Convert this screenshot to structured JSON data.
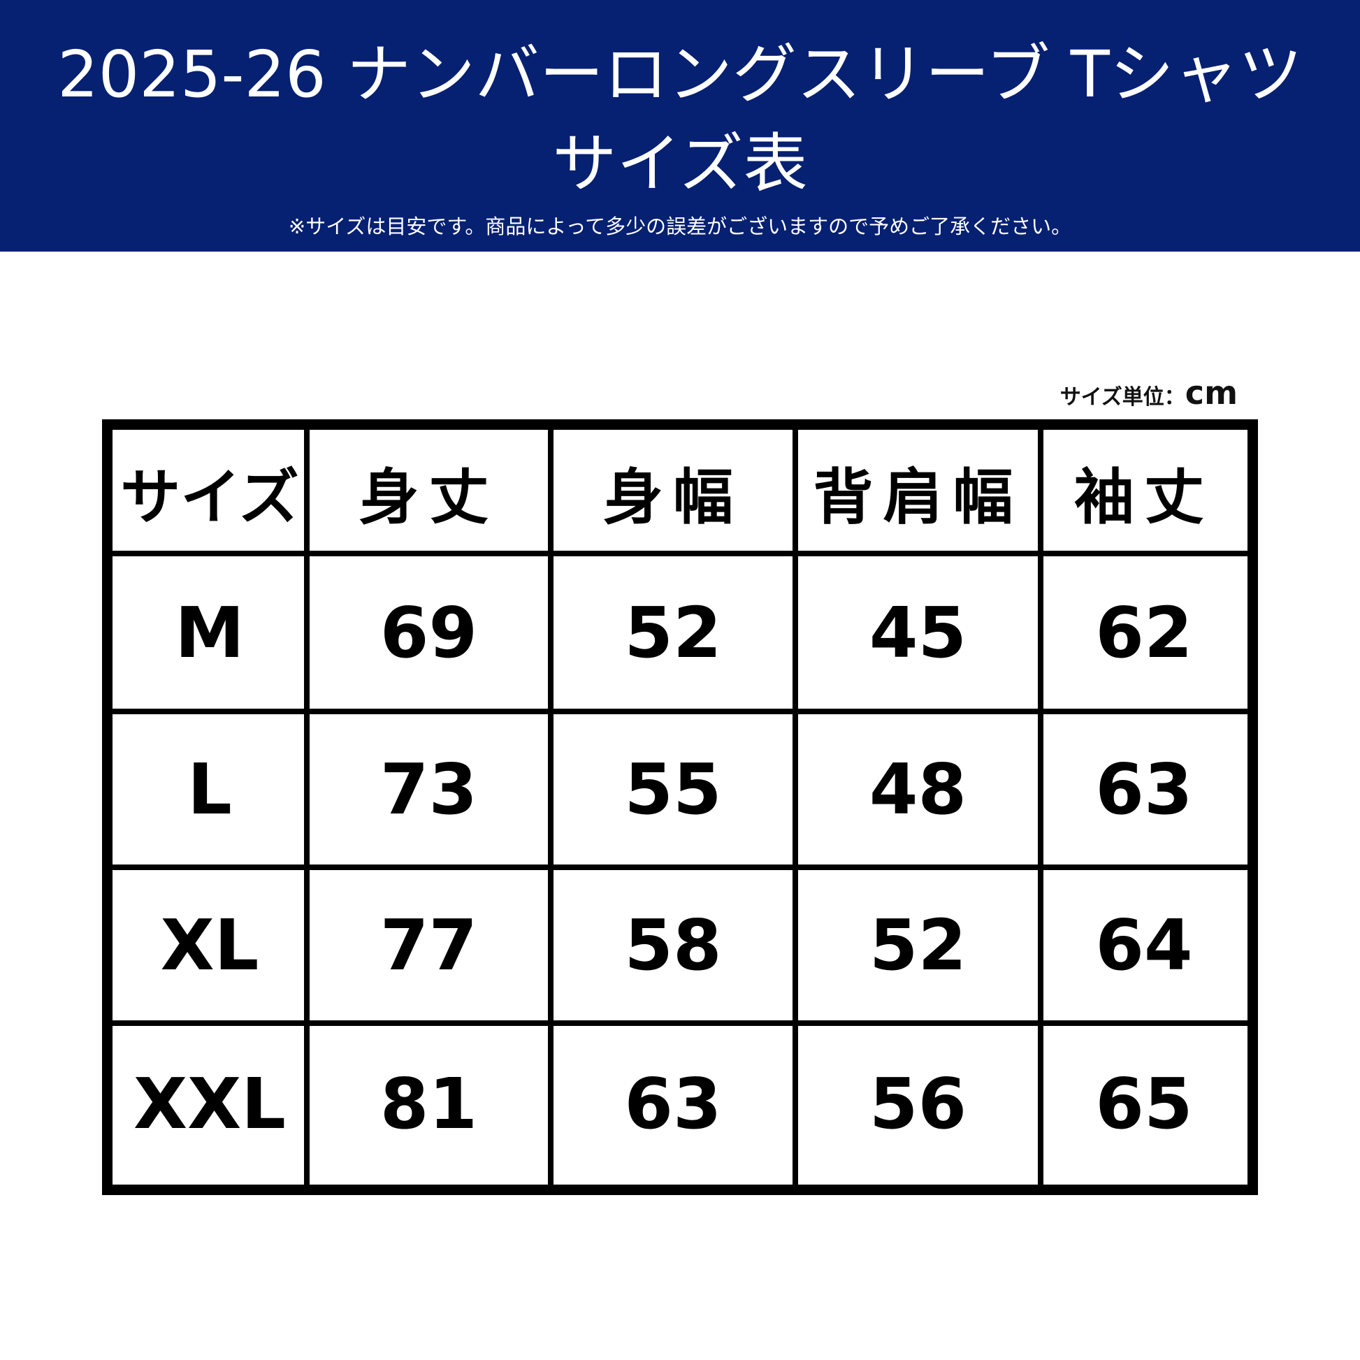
{
  "header": {
    "title_line1": "2025-26 ナンバーロングスリーブ Tシャツ",
    "title_line2": "サイズ表",
    "note": "※サイズは目安です。商品によって多少の誤差がございますので予めご了承ください。",
    "background_color": "#062072"
  },
  "unit": {
    "label": "サイズ単位：",
    "value": "cm"
  },
  "table": {
    "headers": [
      "サイズ",
      "身丈",
      "身幅",
      "背肩幅",
      "袖丈"
    ],
    "rows": [
      [
        "M",
        "69",
        "52",
        "45",
        "62"
      ],
      [
        "L",
        "73",
        "55",
        "48",
        "63"
      ],
      [
        "XL",
        "77",
        "58",
        "52",
        "64"
      ],
      [
        "XXL",
        "81",
        "63",
        "56",
        "65"
      ]
    ]
  }
}
